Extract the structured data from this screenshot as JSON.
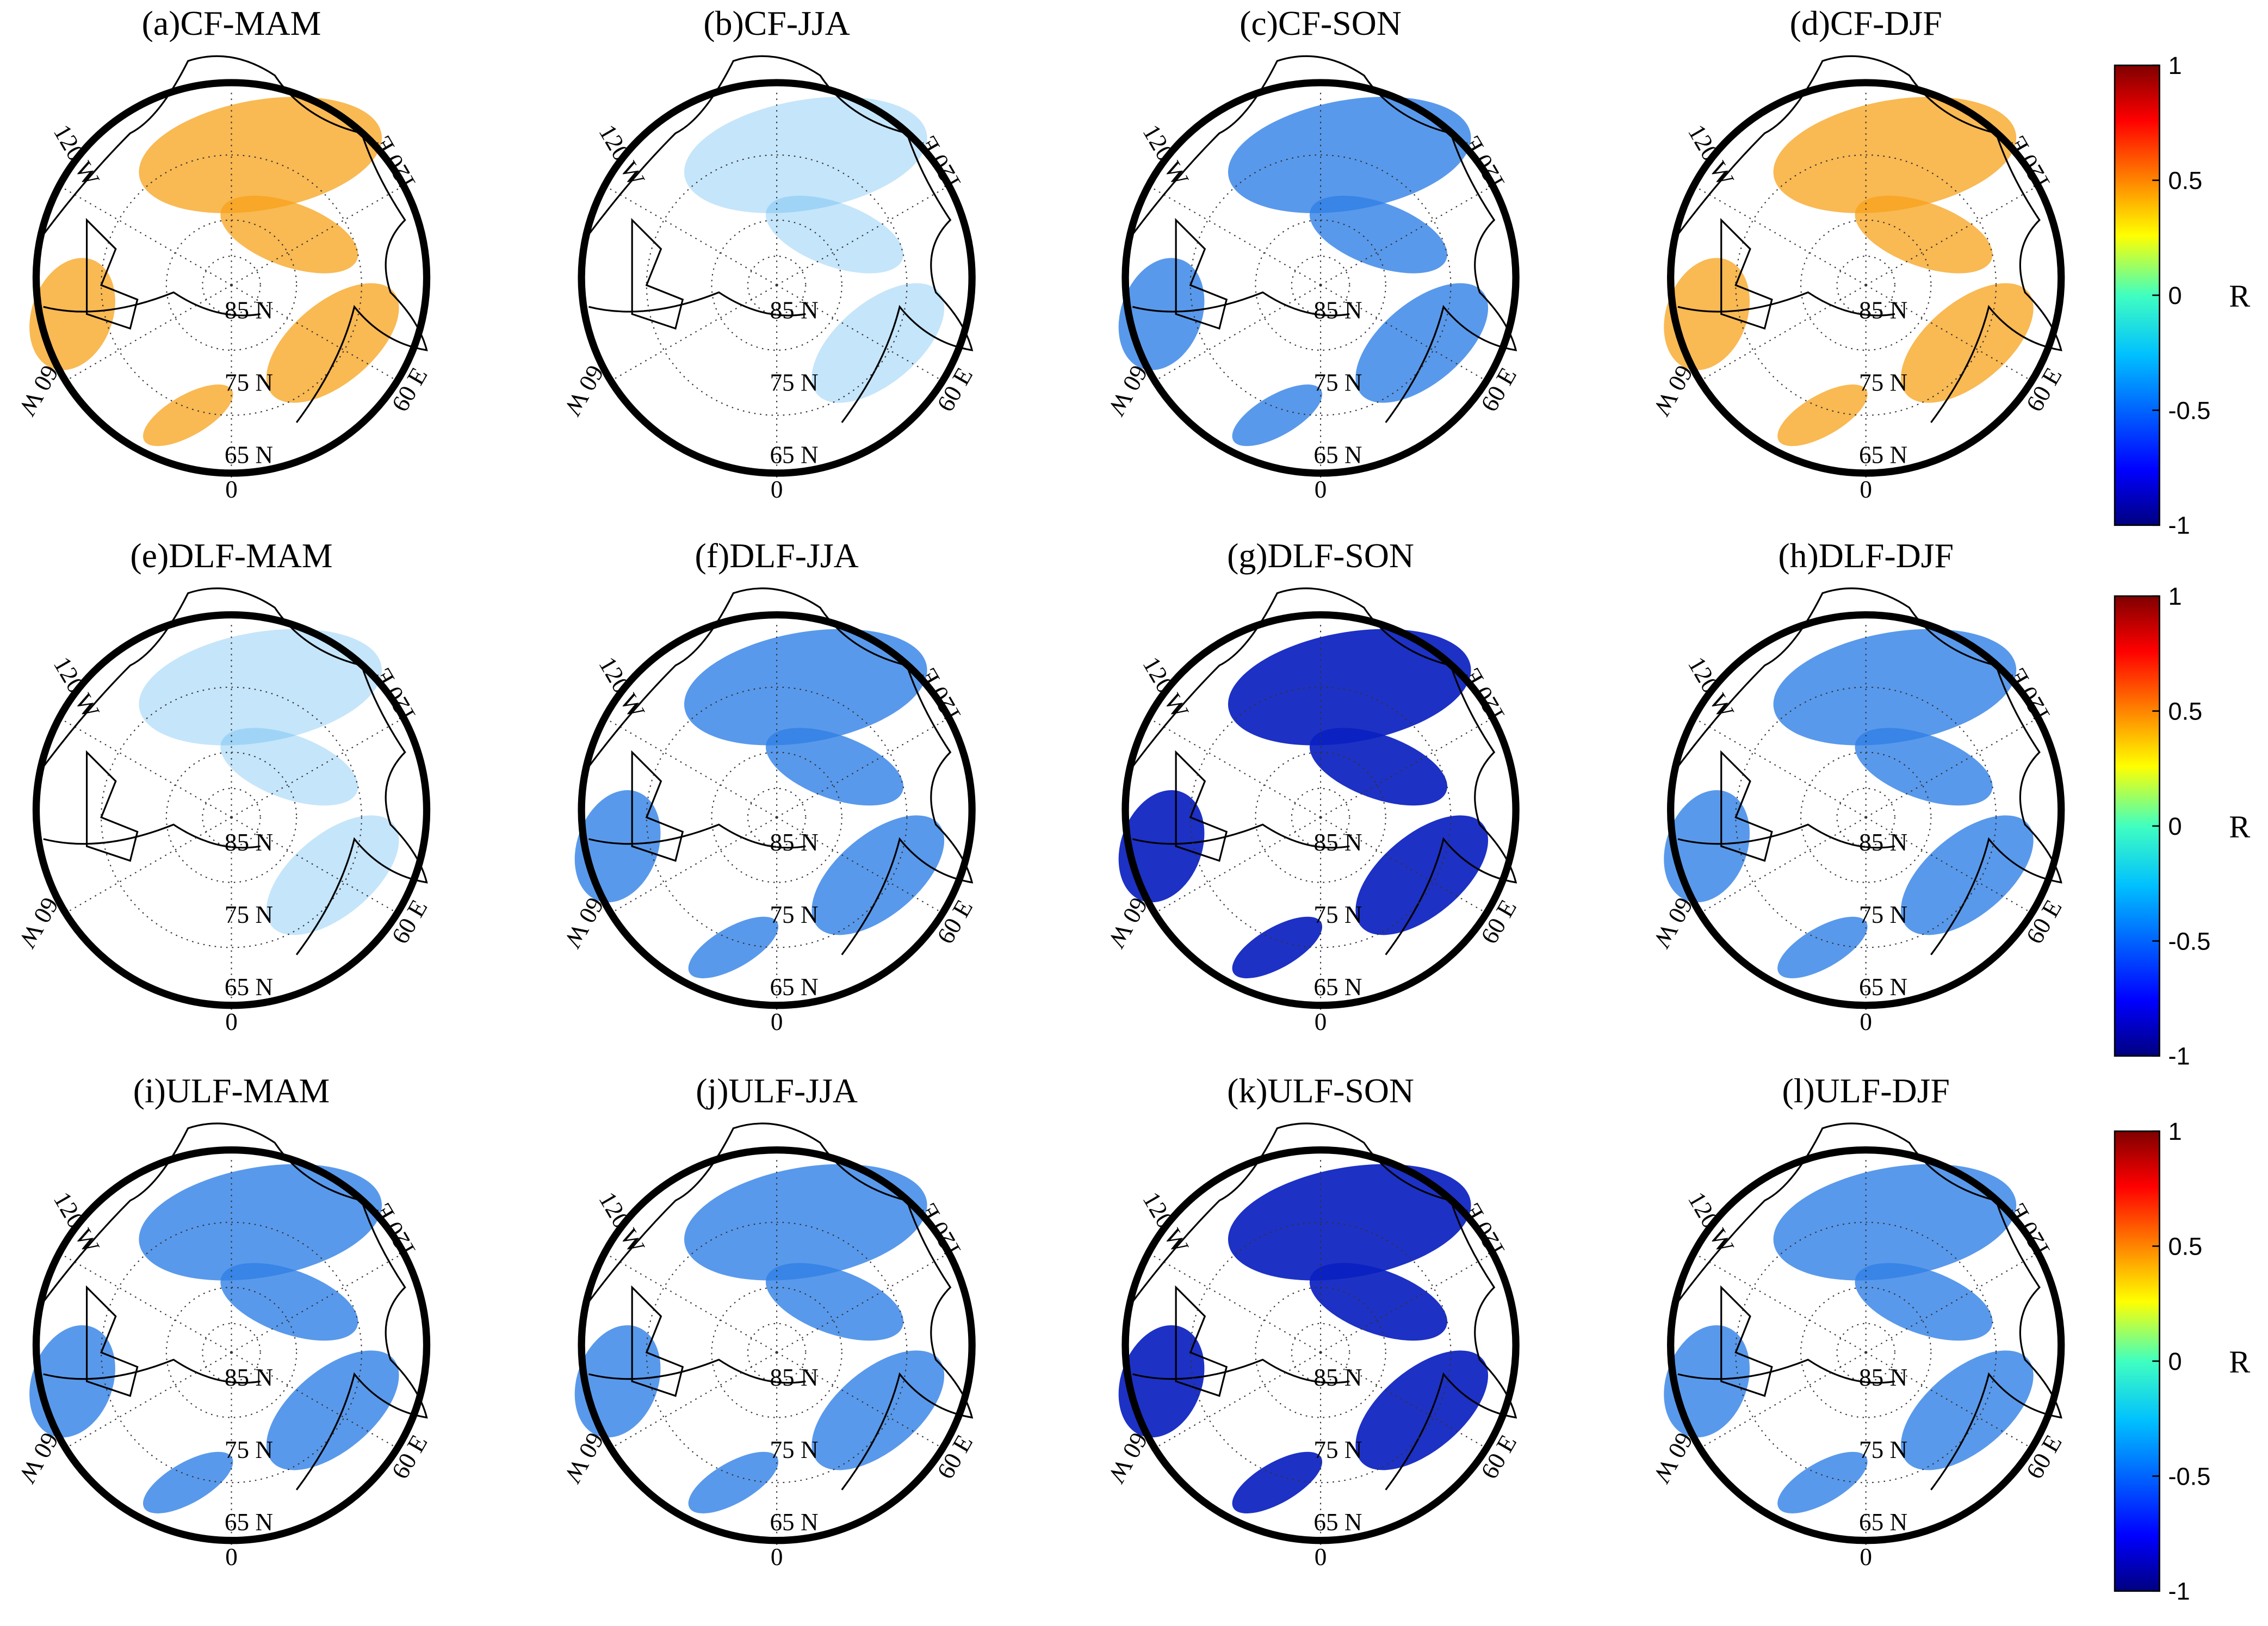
{
  "panels": [
    {
      "title": "(a)CF-MAM"
    },
    {
      "title": "(b)CF-JJA"
    },
    {
      "title": "(c)CF-SON"
    },
    {
      "title": "(d)CF-DJF"
    },
    {
      "title": "(e)DLF-MAM"
    },
    {
      "title": "(f)DLF-JJA"
    },
    {
      "title": "(g)DLF-SON"
    },
    {
      "title": "(h)DLF-DJF"
    },
    {
      "title": "(i)ULF-MAM"
    },
    {
      "title": "(j)ULF-JJA"
    },
    {
      "title": "(k)ULF-SON"
    },
    {
      "title": "(l)ULF-DJF"
    }
  ],
  "map_labels": {
    "lon_120w": "120 W",
    "lon_120e": "120 E",
    "lon_60w": "60 W",
    "lon_60e": "60 E",
    "lon_0": "0",
    "lat_85": "85 N",
    "lat_75": "75 N",
    "lat_65": "65 N"
  },
  "colorbar": {
    "label": "R",
    "lim": [
      -1,
      1
    ],
    "ticks": [
      1,
      0.5,
      0,
      -0.5,
      -1
    ]
  }
}
